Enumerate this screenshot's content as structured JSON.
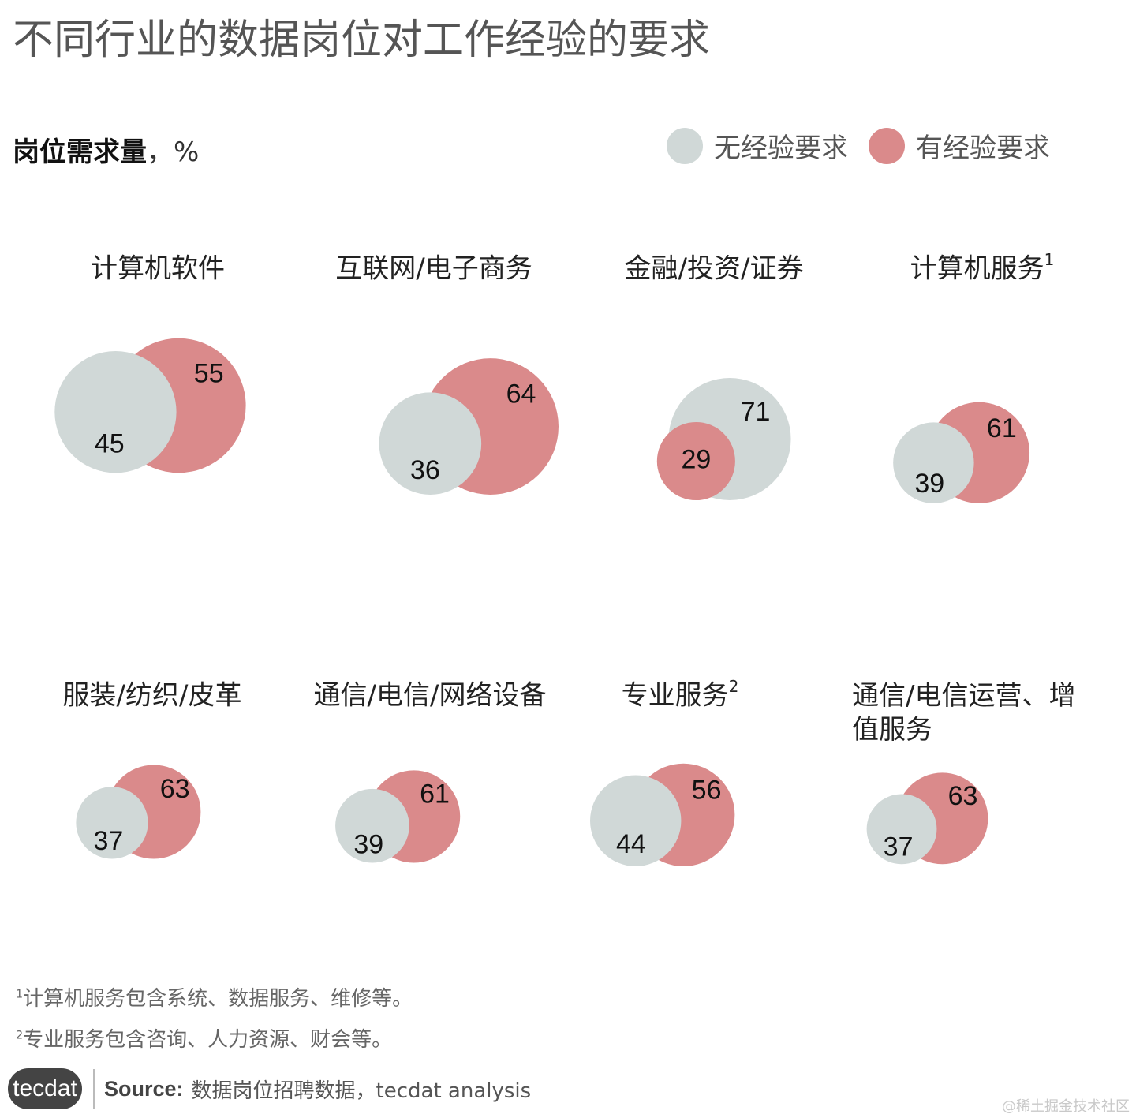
{
  "title": "不同行业的数据岗位对工作经验的要求",
  "subtitle": {
    "label": "岗位需求量",
    "unit": "，%"
  },
  "legend": [
    {
      "label": "无经验要求",
      "color": "#d0d8d7"
    },
    {
      "label": "有经验要求",
      "color": "#da8a8b"
    }
  ],
  "chart_data": {
    "type": "bubble",
    "unit": "%",
    "series_names": [
      "无经验要求",
      "有经验要求"
    ],
    "colors": {
      "no_experience": "#d0d8d7",
      "with_experience": "#da8a8b"
    },
    "panels": [
      {
        "industry": "计算机软件",
        "footnote_mark": "",
        "no_experience": 45,
        "with_experience": 55
      },
      {
        "industry": "互联网/电子商务",
        "footnote_mark": "",
        "no_experience": 36,
        "with_experience": 64
      },
      {
        "industry": "金融/投资/证券",
        "footnote_mark": "",
        "no_experience": 71,
        "with_experience": 29
      },
      {
        "industry": "计算机服务",
        "footnote_mark": "1",
        "no_experience": 39,
        "with_experience": 61
      },
      {
        "industry": "服装/纺织/皮革",
        "footnote_mark": "",
        "no_experience": 37,
        "with_experience": 63
      },
      {
        "industry": "通信/电信/网络设备",
        "footnote_mark": "",
        "no_experience": 39,
        "with_experience": 61
      },
      {
        "industry": "专业服务",
        "footnote_mark": "2",
        "no_experience": 44,
        "with_experience": 56
      },
      {
        "industry": "通信/电信运营、增值服务",
        "footnote_mark": "",
        "no_experience": 37,
        "with_experience": 63
      }
    ]
  },
  "footnotes": [
    {
      "mark": "1",
      "text": "计算机服务包含系统、数据服务、维修等。"
    },
    {
      "mark": "2",
      "text": "专业服务包含咨询、人力资源、财会等。"
    }
  ],
  "footer": {
    "logo_text": "tecdat",
    "source_label": "Source:",
    "source_text": "数据岗位招聘数据，tecdat analysis"
  },
  "watermark": "@稀土掘金技术社区"
}
